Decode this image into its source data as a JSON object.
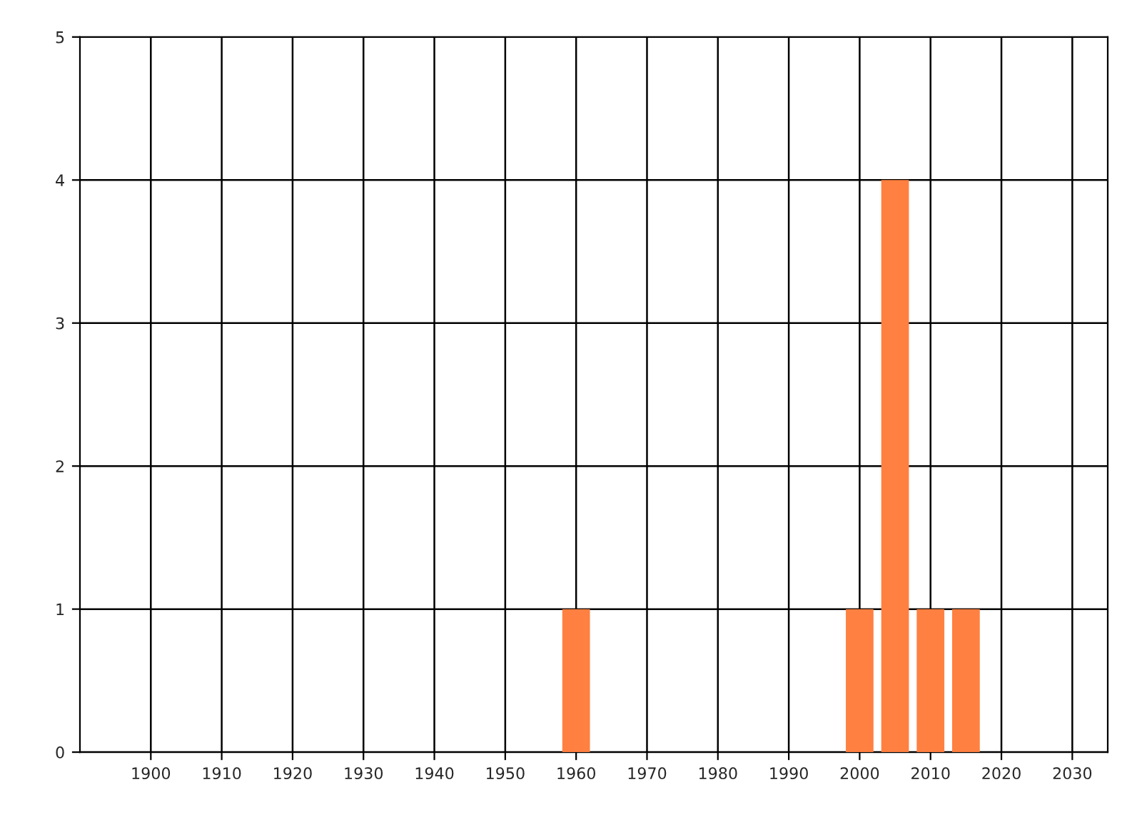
{
  "chart_data": {
    "type": "bar",
    "x": [
      1960,
      2000,
      2005,
      2010,
      2015
    ],
    "values": [
      1,
      1,
      4,
      1,
      1
    ],
    "color": "#ff8040",
    "xlim": [
      1890,
      2035
    ],
    "xticks": [
      1900,
      1910,
      1920,
      1930,
      1940,
      1950,
      1960,
      1970,
      1980,
      1990,
      2000,
      2010,
      2020,
      2030
    ],
    "ylim": [
      0,
      5
    ],
    "yticks": [
      0,
      1,
      2,
      3,
      4,
      5
    ],
    "grid": true
  }
}
